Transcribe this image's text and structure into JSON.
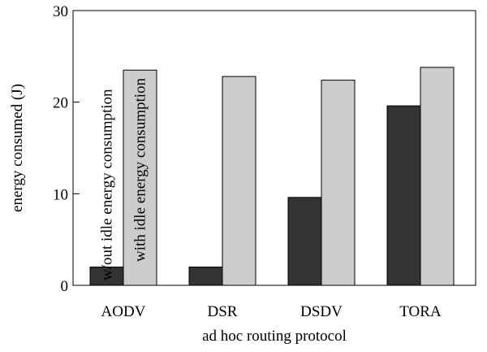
{
  "chart_data": {
    "type": "bar",
    "title": "",
    "xlabel": "ad hoc routing protocol",
    "ylabel": "energy consumed (J)",
    "categories": [
      "AODV",
      "DSR",
      "DSDV",
      "TORA"
    ],
    "ylim": [
      0,
      30
    ],
    "yticks": [
      "0",
      "10",
      "20",
      "30"
    ],
    "grid": false,
    "legend": "none",
    "series": [
      {
        "name": "w/out idle energy consumption",
        "values": [
          2.0,
          2.0,
          9.6,
          19.6
        ],
        "color": "#333333"
      },
      {
        "name": "with idle energy consumption",
        "values": [
          23.5,
          22.8,
          22.4,
          23.8
        ],
        "color": "#cccccc"
      }
    ]
  }
}
